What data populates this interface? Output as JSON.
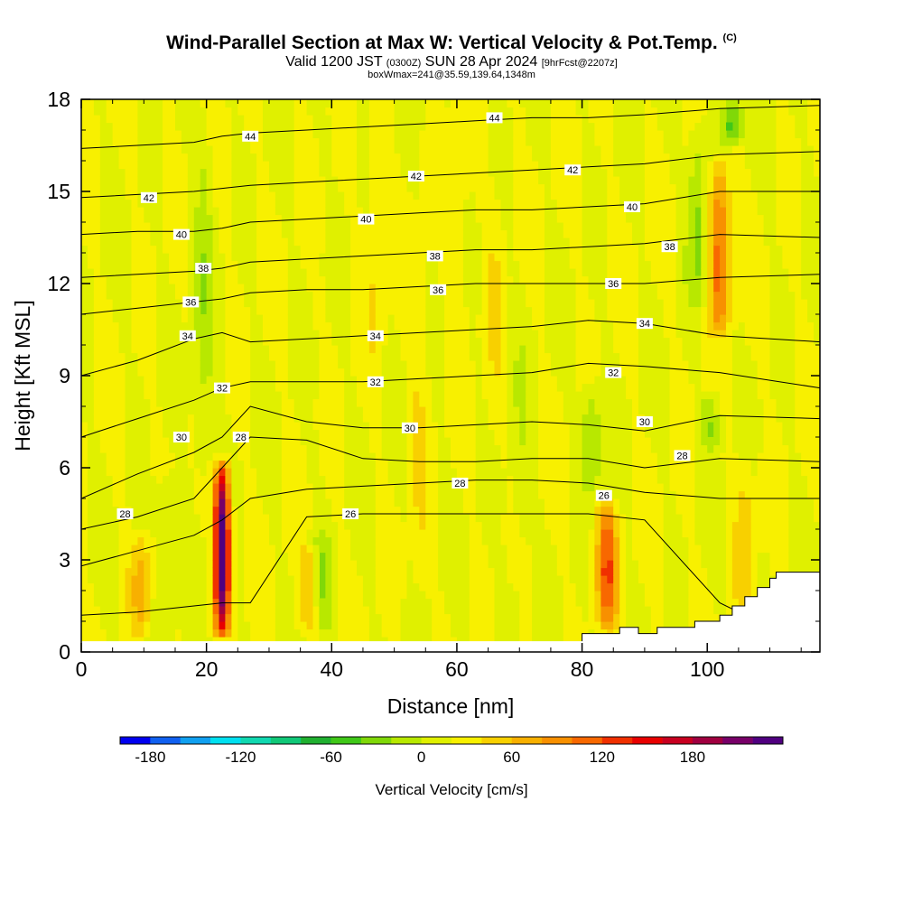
{
  "header": {
    "title": "Wind-Parallel Section at Max W: Vertical Velocity & Pot.Temp.",
    "copyright": "(C)",
    "valid_prefix": "Valid 1200 JST",
    "valid_utc": "(0300Z)",
    "valid_date": "SUN 28 Apr 2024",
    "forecast": "[9hrFcst@2207z]",
    "box_info": "boxWmax=241@35.59,139.64,1348m"
  },
  "chart_data": {
    "type": "heatmap",
    "title": "Wind-Parallel Section at Max W: Vertical Velocity & Pot.Temp.",
    "xlabel": "Distance [nm]",
    "ylabel": "Height [Kft MSL]",
    "xlim": [
      0,
      118
    ],
    "ylim": [
      0,
      18
    ],
    "x_ticks": [
      "0",
      "20",
      "40",
      "60",
      "80",
      "100"
    ],
    "y_ticks": [
      "0",
      "3",
      "6",
      "9",
      "12",
      "15",
      "18"
    ],
    "colorbar": {
      "title": "Vertical Velocity [cm/s]",
      "tick_labels": [
        "-180",
        "-120",
        "-60",
        "0",
        "60",
        "120",
        "180"
      ],
      "colors": [
        "#0000f0",
        "#1060f0",
        "#10a0f0",
        "#00e0f0",
        "#10d8b0",
        "#10c878",
        "#20b030",
        "#40c818",
        "#80d808",
        "#b8e800",
        "#e0f000",
        "#f8f000",
        "#f8d000",
        "#f8b000",
        "#f89000",
        "#f86800",
        "#f03000",
        "#e80000",
        "#c80020",
        "#a00040",
        "#780068",
        "#500080"
      ]
    },
    "updraft_max_cms": 241,
    "velocity_columns": [
      {
        "x": 22.5,
        "ybot": 0.4,
        "ytop": 6.4,
        "w": 230
      },
      {
        "x": 84,
        "ybot": 0.6,
        "ytop": 5.0,
        "w": 100
      },
      {
        "x": 102,
        "ybot": 10.2,
        "ytop": 16.2,
        "w": 95
      },
      {
        "x": 9.5,
        "ybot": 0.4,
        "ytop": 4.0,
        "w": 45
      },
      {
        "x": 36.5,
        "ybot": 0.4,
        "ytop": 3.6,
        "w": 45
      },
      {
        "x": 54,
        "ybot": 1.0,
        "ytop": 15.0,
        "w": 18
      },
      {
        "x": 60,
        "ybot": 10.0,
        "ytop": 18.0,
        "w": 22
      },
      {
        "x": 66,
        "ybot": 6.0,
        "ytop": 16.0,
        "w": 16
      },
      {
        "x": 47,
        "ybot": 9.0,
        "ytop": 18.0,
        "w": 20
      },
      {
        "x": 106,
        "ybot": 0.6,
        "ytop": 6.5,
        "w": 30
      },
      {
        "x": 38.5,
        "ybot": 0.4,
        "ytop": 4.0,
        "w": -40
      },
      {
        "x": 19.5,
        "ybot": 5.0,
        "ytop": 18.0,
        "w": -30
      },
      {
        "x": 81.5,
        "ybot": 5.0,
        "ytop": 9.0,
        "w": -45
      },
      {
        "x": 100.5,
        "ybot": 6.5,
        "ytop": 8.5,
        "w": -40
      },
      {
        "x": 104,
        "ybot": 16.5,
        "ytop": 18.0,
        "w": -70
      },
      {
        "x": 13.5,
        "ybot": 0.4,
        "ytop": 6.0,
        "w": -25
      },
      {
        "x": 70,
        "ybot": 1.0,
        "ytop": 12.0,
        "w": -15
      },
      {
        "x": 98.5,
        "ybot": 11.0,
        "ytop": 17.5,
        "w": -45
      }
    ],
    "potential_temperature_isentropes": [
      {
        "label": "26",
        "y": [
          1.2,
          1.3,
          1.5,
          1.6,
          1.6,
          4.4,
          4.5,
          4.5,
          4.5,
          4.5,
          4.5,
          4.3,
          1.6,
          0.0
        ]
      },
      {
        "label": "28",
        "y": [
          2.8,
          3.3,
          3.8,
          4.3,
          5.0,
          5.3,
          5.4,
          5.5,
          5.6,
          5.6,
          5.5,
          5.2,
          5.0,
          5.0
        ]
      },
      {
        "label": "28",
        "y": [
          4.0,
          4.4,
          5.0,
          6.0,
          7.0,
          6.9,
          6.3,
          6.2,
          6.2,
          6.3,
          6.3,
          6.0,
          6.3,
          6.2
        ]
      },
      {
        "label": "30",
        "y": [
          5.0,
          5.8,
          6.5,
          7.0,
          8.0,
          7.5,
          7.3,
          7.3,
          7.4,
          7.5,
          7.4,
          7.2,
          7.7,
          7.6
        ]
      },
      {
        "label": "32",
        "y": [
          7.0,
          7.6,
          8.2,
          8.6,
          8.8,
          8.8,
          8.8,
          8.9,
          9.0,
          9.1,
          9.4,
          9.3,
          9.1,
          8.6
        ]
      },
      {
        "label": "34",
        "y": [
          9.0,
          9.5,
          10.2,
          10.4,
          10.1,
          10.2,
          10.3,
          10.4,
          10.5,
          10.6,
          10.8,
          10.7,
          10.3,
          10.1
        ]
      },
      {
        "label": "36",
        "y": [
          11.0,
          11.2,
          11.4,
          11.5,
          11.7,
          11.8,
          11.8,
          11.9,
          12.0,
          12.0,
          12.0,
          12.0,
          12.2,
          12.3
        ]
      },
      {
        "label": "38",
        "y": [
          12.2,
          12.3,
          12.4,
          12.5,
          12.7,
          12.8,
          12.9,
          13.0,
          13.1,
          13.1,
          13.2,
          13.3,
          13.6,
          13.5
        ]
      },
      {
        "label": "40",
        "y": [
          13.6,
          13.7,
          13.7,
          13.8,
          14.0,
          14.1,
          14.2,
          14.3,
          14.4,
          14.4,
          14.5,
          14.6,
          15.0,
          15.0
        ]
      },
      {
        "label": "42",
        "y": [
          14.8,
          14.9,
          15.0,
          15.1,
          15.2,
          15.3,
          15.4,
          15.5,
          15.6,
          15.7,
          15.8,
          15.9,
          16.2,
          16.3
        ]
      },
      {
        "label": "44",
        "y": [
          16.4,
          16.5,
          16.6,
          16.8,
          16.9,
          17.0,
          17.1,
          17.2,
          17.3,
          17.4,
          17.4,
          17.5,
          17.7,
          17.8
        ]
      }
    ],
    "isentrope_x": [
      0,
      9,
      18,
      22.5,
      27,
      36,
      45,
      54,
      63,
      72,
      81,
      90,
      102,
      118
    ],
    "contour_labels": [
      {
        "text": "44",
        "x": 27,
        "y": 16.8
      },
      {
        "text": "44",
        "x": 66,
        "y": 17.4
      },
      {
        "text": "42",
        "x": 10.8,
        "y": 14.8
      },
      {
        "text": "42",
        "x": 53.5,
        "y": 15.5
      },
      {
        "text": "42",
        "x": 78.5,
        "y": 15.7
      },
      {
        "text": "40",
        "x": 16,
        "y": 13.6
      },
      {
        "text": "40",
        "x": 45.5,
        "y": 14.1
      },
      {
        "text": "40",
        "x": 88,
        "y": 14.5
      },
      {
        "text": "38",
        "x": 19.5,
        "y": 12.5
      },
      {
        "text": "38",
        "x": 56.5,
        "y": 12.9
      },
      {
        "text": "38",
        "x": 94,
        "y": 13.2
      },
      {
        "text": "36",
        "x": 17.5,
        "y": 11.4
      },
      {
        "text": "36",
        "x": 57,
        "y": 11.8
      },
      {
        "text": "36",
        "x": 85,
        "y": 12.0
      },
      {
        "text": "34",
        "x": 17,
        "y": 10.3
      },
      {
        "text": "34",
        "x": 47,
        "y": 10.3
      },
      {
        "text": "34",
        "x": 90,
        "y": 10.7
      },
      {
        "text": "32",
        "x": 22.5,
        "y": 8.6
      },
      {
        "text": "32",
        "x": 47,
        "y": 8.8
      },
      {
        "text": "32",
        "x": 85,
        "y": 9.1
      },
      {
        "text": "30",
        "x": 16,
        "y": 7.0
      },
      {
        "text": "30",
        "x": 52.5,
        "y": 7.3
      },
      {
        "text": "30",
        "x": 90,
        "y": 7.5
      },
      {
        "text": "28",
        "x": 25.5,
        "y": 7.0
      },
      {
        "text": "28",
        "x": 60.5,
        "y": 5.5
      },
      {
        "text": "28",
        "x": 96,
        "y": 6.4
      },
      {
        "text": "28",
        "x": 7,
        "y": 4.5
      },
      {
        "text": "26",
        "x": 43,
        "y": 4.5
      },
      {
        "text": "26",
        "x": 83.5,
        "y": 5.1
      }
    ],
    "terrain_mask": [
      [
        80,
        0.6
      ],
      [
        86,
        0.6
      ],
      [
        86,
        0.8
      ],
      [
        89,
        0.8
      ],
      [
        89,
        0.6
      ],
      [
        92,
        0.6
      ],
      [
        92,
        0.8
      ],
      [
        98,
        0.8
      ],
      [
        98,
        1.0
      ],
      [
        102,
        1.0
      ],
      [
        102,
        1.2
      ],
      [
        104,
        1.2
      ],
      [
        104,
        1.5
      ],
      [
        106,
        1.5
      ],
      [
        106,
        1.8
      ],
      [
        108,
        1.8
      ],
      [
        108,
        2.1
      ],
      [
        110,
        2.1
      ],
      [
        110,
        2.4
      ],
      [
        111,
        2.4
      ],
      [
        111,
        2.6
      ],
      [
        118,
        2.6
      ]
    ]
  }
}
